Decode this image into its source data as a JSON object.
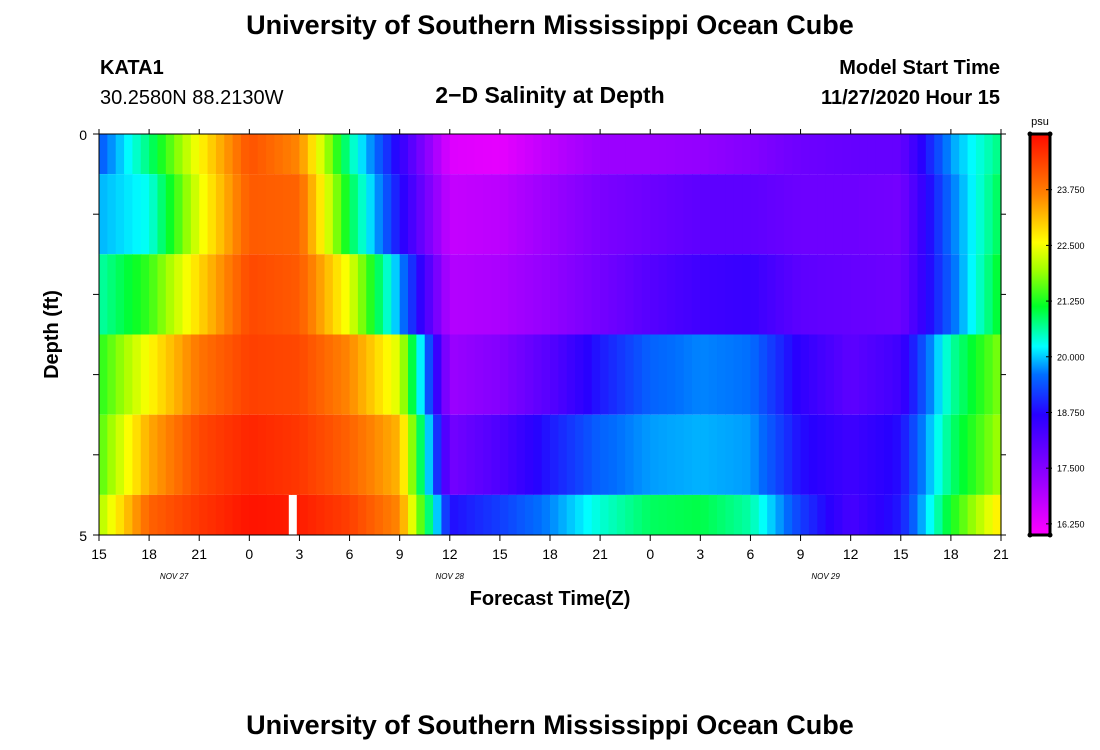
{
  "header": {
    "title": "University of Southern Mississippi Ocean Cube",
    "station": "KATA1",
    "coords": "30.2580N 88.2130W",
    "model_start_label": "Model Start Time",
    "model_start_value": "11/27/2020 Hour 15",
    "footer_title": "University of Southern Mississippi Ocean Cube"
  },
  "chart_data": {
    "type": "heatmap",
    "title": "2−D Salinity at Depth",
    "xlabel": "Forecast Time(Z)",
    "ylabel": "Depth (ft)",
    "x_tick_labels": [
      "15",
      "18",
      "21",
      "0",
      "3",
      "6",
      "9",
      "12",
      "15",
      "18",
      "21",
      "0",
      "3",
      "6",
      "9",
      "12",
      "15",
      "18",
      "21"
    ],
    "date_labels": [
      {
        "label": "NOV  27",
        "tick_index": 1.5
      },
      {
        "label": "NOV  28",
        "tick_index": 7
      },
      {
        "label": "NOV  29",
        "tick_index": 14.5
      }
    ],
    "y_tick_labels": [
      "0",
      "5"
    ],
    "depth_range": [
      0,
      5
    ],
    "hours_range": [
      0,
      54
    ],
    "current_time_hour": 11.6,
    "colorbar": {
      "unit": "psu",
      "range": [
        16.0,
        25.0
      ],
      "tick_values": [
        16.25,
        17.5,
        18.75,
        20.0,
        21.25,
        22.5,
        23.75
      ],
      "tick_labels": [
        "16.250",
        "17.500",
        "18.750",
        "20.000",
        "21.250",
        "22.500",
        "23.750"
      ]
    },
    "grid_x_hours": [
      0,
      3,
      6,
      9,
      12,
      15,
      18,
      21,
      24,
      27,
      30,
      33,
      36,
      39,
      42,
      45,
      48,
      51,
      54
    ],
    "salinity_rows": [
      {
        "depth_range": [
          0,
          0.5
        ],
        "values": [
          19.4,
          20.8,
          22.6,
          24.2,
          23.6,
          20.6,
          18.6,
          16.4,
          16.3,
          16.8,
          17.2,
          17.2,
          17.3,
          17.5,
          17.8,
          17.9,
          17.9,
          19.8,
          20.8
        ]
      },
      {
        "depth_range": [
          0.5,
          1.5
        ],
        "values": [
          19.9,
          20.3,
          22.4,
          24.1,
          24.0,
          21.0,
          18.8,
          16.7,
          16.8,
          17.2,
          17.6,
          17.8,
          18.0,
          18.0,
          17.8,
          17.8,
          17.7,
          19.6,
          21.0
        ]
      },
      {
        "depth_range": [
          1.5,
          2.5
        ],
        "values": [
          20.6,
          21.4,
          22.9,
          24.3,
          24.1,
          22.4,
          19.8,
          16.9,
          17.0,
          17.3,
          17.7,
          18.1,
          18.4,
          18.5,
          18.0,
          17.9,
          17.8,
          19.5,
          21.2
        ]
      },
      {
        "depth_range": [
          2.5,
          3.5
        ],
        "values": [
          21.3,
          22.6,
          23.8,
          24.4,
          24.3,
          23.6,
          22.3,
          17.2,
          17.5,
          18.1,
          18.9,
          19.5,
          19.7,
          19.6,
          18.6,
          18.0,
          18.4,
          20.6,
          21.8
        ]
      },
      {
        "depth_range": [
          3.5,
          4.5
        ],
        "values": [
          21.5,
          23.3,
          24.3,
          24.7,
          24.5,
          24.0,
          23.2,
          17.7,
          18.2,
          18.9,
          19.5,
          19.8,
          19.9,
          19.8,
          18.8,
          18.4,
          18.8,
          20.8,
          22.0
        ]
      },
      {
        "depth_range": [
          4.5,
          5.0
        ],
        "values": [
          22.0,
          24.0,
          24.5,
          24.9,
          24.8,
          24.4,
          23.6,
          18.8,
          19.2,
          19.7,
          20.4,
          20.9,
          21.0,
          20.6,
          19.2,
          18.3,
          18.9,
          21.2,
          22.8
        ]
      }
    ]
  }
}
